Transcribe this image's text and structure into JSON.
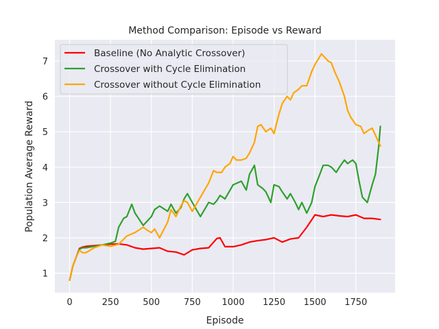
{
  "chart_data": {
    "type": "line",
    "title": "Method Comparison: Episode vs Reward",
    "xlabel": "Episode",
    "ylabel": "Population Average Reward",
    "xlim": [
      -90,
      1990
    ],
    "ylim": [
      0.45,
      7.6
    ],
    "xticks": [
      0,
      250,
      500,
      750,
      1000,
      1250,
      1500,
      1750
    ],
    "yticks": [
      1,
      2,
      3,
      4,
      5,
      6,
      7
    ],
    "grid": true,
    "background": "#eaeaf2",
    "legend_position": "top-left",
    "series": [
      {
        "name": "Baseline (No Analytic Crossover)",
        "color": "#ff0000",
        "x": [
          0,
          20,
          40,
          60,
          80,
          100,
          150,
          200,
          250,
          300,
          350,
          400,
          450,
          500,
          550,
          600,
          650,
          700,
          750,
          800,
          850,
          900,
          920,
          950,
          1000,
          1050,
          1100,
          1150,
          1200,
          1250,
          1300,
          1350,
          1400,
          1450,
          1500,
          1550,
          1600,
          1650,
          1700,
          1750,
          1800,
          1850,
          1900
        ],
        "y": [
          0.8,
          1.2,
          1.45,
          1.7,
          1.74,
          1.76,
          1.78,
          1.8,
          1.82,
          1.83,
          1.8,
          1.72,
          1.68,
          1.7,
          1.72,
          1.62,
          1.6,
          1.52,
          1.66,
          1.7,
          1.72,
          1.98,
          2.0,
          1.75,
          1.75,
          1.8,
          1.88,
          1.92,
          1.95,
          2.0,
          1.88,
          1.97,
          2.0,
          2.3,
          2.65,
          2.6,
          2.65,
          2.62,
          2.6,
          2.65,
          2.55,
          2.55,
          2.52
        ]
      },
      {
        "name": "Crossover with Cycle Elimination",
        "color": "#2ca02c",
        "x": [
          0,
          20,
          40,
          60,
          80,
          100,
          150,
          200,
          250,
          280,
          300,
          330,
          350,
          380,
          400,
          450,
          500,
          520,
          550,
          600,
          620,
          650,
          680,
          700,
          720,
          750,
          800,
          850,
          880,
          900,
          920,
          950,
          1000,
          1050,
          1080,
          1100,
          1130,
          1150,
          1180,
          1200,
          1230,
          1250,
          1280,
          1300,
          1330,
          1350,
          1380,
          1400,
          1420,
          1450,
          1480,
          1500,
          1530,
          1550,
          1580,
          1600,
          1630,
          1650,
          1680,
          1700,
          1730,
          1750,
          1770,
          1790,
          1800,
          1820,
          1850,
          1870,
          1890,
          1900
        ],
        "y": [
          0.8,
          1.2,
          1.45,
          1.68,
          1.72,
          1.72,
          1.76,
          1.8,
          1.85,
          1.9,
          2.3,
          2.55,
          2.6,
          2.95,
          2.7,
          2.35,
          2.6,
          2.8,
          2.9,
          2.75,
          2.95,
          2.7,
          2.85,
          3.1,
          3.25,
          3.0,
          2.6,
          3.0,
          2.95,
          3.05,
          3.2,
          3.1,
          3.5,
          3.6,
          3.35,
          3.8,
          4.05,
          3.5,
          3.4,
          3.3,
          3.0,
          3.5,
          3.45,
          3.3,
          3.1,
          3.25,
          3.0,
          2.8,
          3.0,
          2.7,
          3.0,
          3.45,
          3.8,
          4.05,
          4.05,
          4.0,
          3.85,
          4.0,
          4.2,
          4.1,
          4.2,
          4.1,
          3.6,
          3.15,
          3.1,
          3.0,
          3.5,
          3.8,
          4.6,
          5.15
        ]
      },
      {
        "name": "Crossover without Cycle Elimination",
        "color": "#ffa500",
        "x": [
          0,
          20,
          40,
          60,
          80,
          100,
          150,
          200,
          250,
          300,
          350,
          400,
          450,
          480,
          500,
          520,
          550,
          600,
          620,
          650,
          680,
          700,
          720,
          750,
          800,
          850,
          880,
          900,
          930,
          950,
          980,
          1000,
          1020,
          1050,
          1080,
          1100,
          1130,
          1150,
          1170,
          1200,
          1230,
          1250,
          1280,
          1300,
          1330,
          1350,
          1370,
          1400,
          1420,
          1450,
          1480,
          1500,
          1520,
          1540,
          1560,
          1580,
          1600,
          1620,
          1650,
          1680,
          1700,
          1720,
          1750,
          1780,
          1800,
          1830,
          1850,
          1880,
          1900
        ],
        "y": [
          0.8,
          1.2,
          1.45,
          1.65,
          1.58,
          1.58,
          1.72,
          1.8,
          1.76,
          1.82,
          2.05,
          2.15,
          2.3,
          2.2,
          2.15,
          2.25,
          2.0,
          2.45,
          2.8,
          2.6,
          2.9,
          3.05,
          3.0,
          2.75,
          3.15,
          3.55,
          3.9,
          3.85,
          3.85,
          4.0,
          4.1,
          4.3,
          4.2,
          4.2,
          4.25,
          4.4,
          4.7,
          5.15,
          5.2,
          5.0,
          5.1,
          4.95,
          5.5,
          5.8,
          6.0,
          5.9,
          6.1,
          6.2,
          6.3,
          6.3,
          6.7,
          6.9,
          7.05,
          7.2,
          7.1,
          7.0,
          6.95,
          6.7,
          6.4,
          6.0,
          5.6,
          5.4,
          5.2,
          5.15,
          4.95,
          5.05,
          5.1,
          4.8,
          4.6
        ]
      }
    ]
  }
}
